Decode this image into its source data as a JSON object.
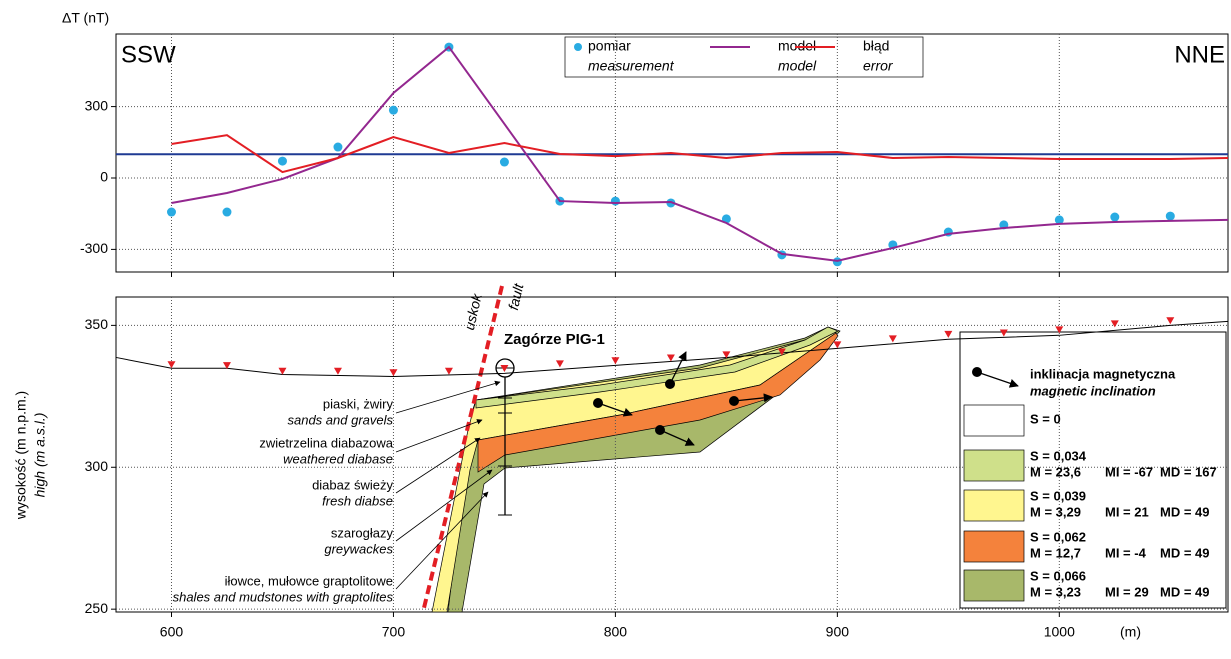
{
  "chart_data": [
    {
      "type": "line",
      "ylabel": "ΔT (nT)",
      "left_label": "SSW",
      "right_label": "NNE",
      "xlim": [
        575,
        1076
      ],
      "xticks": [
        600,
        700,
        800,
        900,
        1000
      ],
      "ylim": [
        -395,
        605
      ],
      "yticks": [
        -300,
        0,
        300
      ],
      "grid": true,
      "reference": {
        "value": 100,
        "color": "#1f3a93"
      },
      "series": [
        {
          "name": "pomiar",
          "name_en": "measurement",
          "color": "#29abe2",
          "style": "marker",
          "x": [
            600,
            625,
            650,
            675,
            700,
            725,
            750,
            775,
            800,
            825,
            850,
            875,
            900,
            925,
            950,
            975,
            1000,
            1025,
            1050
          ],
          "values": [
            -143,
            -143,
            71,
            130,
            285,
            550,
            67,
            -97,
            -97,
            -105,
            -172,
            -323,
            -352,
            -281,
            -227,
            -197,
            -176,
            -164,
            -160
          ]
        },
        {
          "name": "model",
          "name_en": "model",
          "color": "#93278f",
          "style": "line",
          "x": [
            600,
            625,
            650,
            675,
            700,
            725,
            750,
            775,
            800,
            825,
            850,
            875,
            900,
            925,
            950,
            975,
            1000,
            1025,
            1050,
            1076
          ],
          "values": [
            -105,
            -63,
            -4,
            84,
            357,
            550,
            227,
            -97,
            -105,
            -101,
            -189,
            -319,
            -348,
            -294,
            -235,
            -210,
            -193,
            -185,
            -180,
            -176
          ]
        },
        {
          "name": "błąd",
          "name_en": "error",
          "color": "#e31e24",
          "style": "line",
          "x": [
            600,
            625,
            650,
            675,
            700,
            725,
            750,
            775,
            800,
            825,
            850,
            875,
            900,
            925,
            950,
            975,
            1000,
            1025,
            1050,
            1076
          ],
          "values": [
            143,
            180,
            25,
            84,
            172,
            105,
            147,
            101,
            92,
            105,
            84,
            105,
            109,
            84,
            88,
            84,
            80,
            80,
            80,
            84
          ]
        }
      ]
    },
    {
      "type": "section",
      "ylabel": "wysokość (m n.p.m.)",
      "ylabel_en": "high (m a.s.l.)",
      "xlabel": "(m)",
      "xlim": [
        575,
        1076
      ],
      "xticks": [
        600,
        700,
        800,
        900,
        1000
      ],
      "ylim": [
        249,
        360
      ],
      "yticks": [
        250,
        300,
        350
      ],
      "grid": true,
      "fault_label": [
        "uskok",
        "fault"
      ],
      "borehole": "Zagórze PIG-1",
      "terrain": {
        "color": "#000000",
        "x": [
          575,
          600,
          625,
          650,
          700,
          750,
          800,
          850,
          900,
          950,
          1000,
          1050,
          1076
        ],
        "values": [
          338.7,
          334.9,
          334.9,
          332.7,
          332,
          333.1,
          335.9,
          338.7,
          341.9,
          345.1,
          346.5,
          350,
          351.4
        ]
      },
      "stations": {
        "color": "#e31e24",
        "x": [
          600,
          625,
          650,
          675,
          700,
          725,
          750,
          775,
          800,
          825,
          850,
          875,
          900,
          925,
          950,
          975,
          1000,
          1025,
          1050
        ],
        "values": [
          336.3,
          336,
          334,
          334,
          333.5,
          334,
          335,
          336.6,
          337.7,
          338.7,
          339.8,
          340.8,
          343.3,
          345.4,
          347,
          347.5,
          348.6,
          350.7,
          351.8
        ]
      },
      "layer_labels": [
        {
          "pl": "piaski, żwiry",
          "en": "sands and gravels"
        },
        {
          "pl": "zwietrzelina diabazowa",
          "en": "weathered diabase"
        },
        {
          "pl": "diabaz świeży",
          "en": "fresh diabse"
        },
        {
          "pl": "szarogłazy",
          "en": "greywackes"
        },
        {
          "pl": "iłowce, mułowce graptolitowe",
          "en": "shales and mudstones with graptolites"
        }
      ],
      "legend": {
        "title": "inklinacja magnetyczna",
        "title_en": "magnetic inclination",
        "entries": [
          {
            "color": "#ffffff",
            "S": "S = 0"
          },
          {
            "color": "#cfe08a",
            "S": "S = 0,034",
            "M": "M = 23,6",
            "MI": "MI = -67",
            "MD": "MD = 167"
          },
          {
            "color": "#fff68f",
            "S": "S = 0,039",
            "M": "M = 3,29",
            "MI": "MI = 21",
            "MD": "MD = 49"
          },
          {
            "color": "#f4823c",
            "S": "S = 0,062",
            "M": "M = 12,7",
            "MI": "MI = -4",
            "MD": "MD = 49"
          },
          {
            "color": "#a8b86a",
            "S": "S = 0,066",
            "M": "M = 3,23",
            "MI": "MI = 29",
            "MD": "MD = 49"
          }
        ]
      }
    }
  ]
}
